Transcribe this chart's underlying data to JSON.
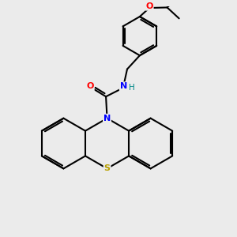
{
  "bg_color": "#ebebeb",
  "atom_colors": {
    "N": "#0000ff",
    "O": "#ff0000",
    "S": "#b8a000",
    "H": "#008888",
    "C": "#000000"
  },
  "bond_color": "#000000",
  "bond_width": 1.5,
  "figsize": [
    3.0,
    3.0
  ],
  "dpi": 100
}
